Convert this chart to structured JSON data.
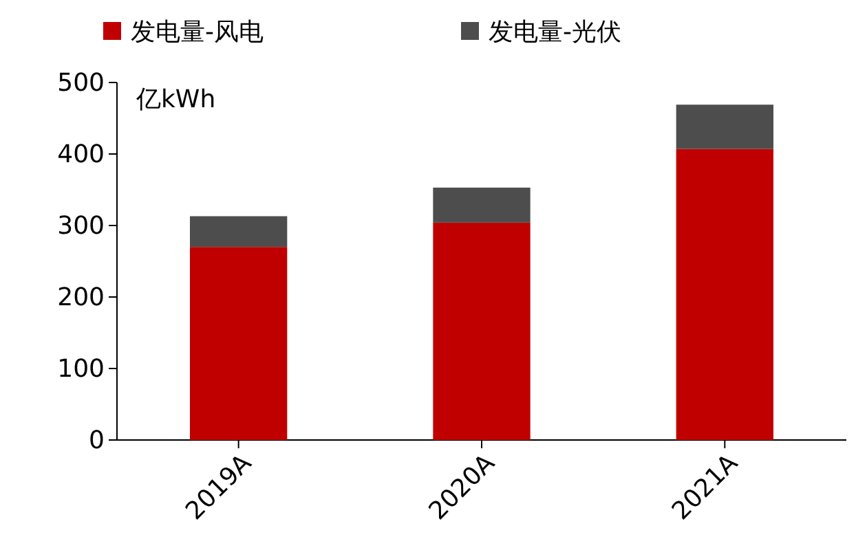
{
  "chart_data": {
    "type": "bar",
    "stacked": true,
    "ylabel": "亿kWh",
    "categories": [
      "2019A",
      "2020A",
      "2021A"
    ],
    "series": [
      {
        "name": "发电量-风电",
        "color": "#c00000",
        "values": [
          270,
          304,
          407
        ]
      },
      {
        "name": "发电量-光伏",
        "color": "#4d4d4d",
        "values": [
          43,
          49,
          62
        ]
      }
    ],
    "ylim": [
      0,
      500
    ],
    "yticks": [
      0,
      100,
      200,
      300,
      400,
      500
    ],
    "grid": false,
    "legend": "top"
  }
}
